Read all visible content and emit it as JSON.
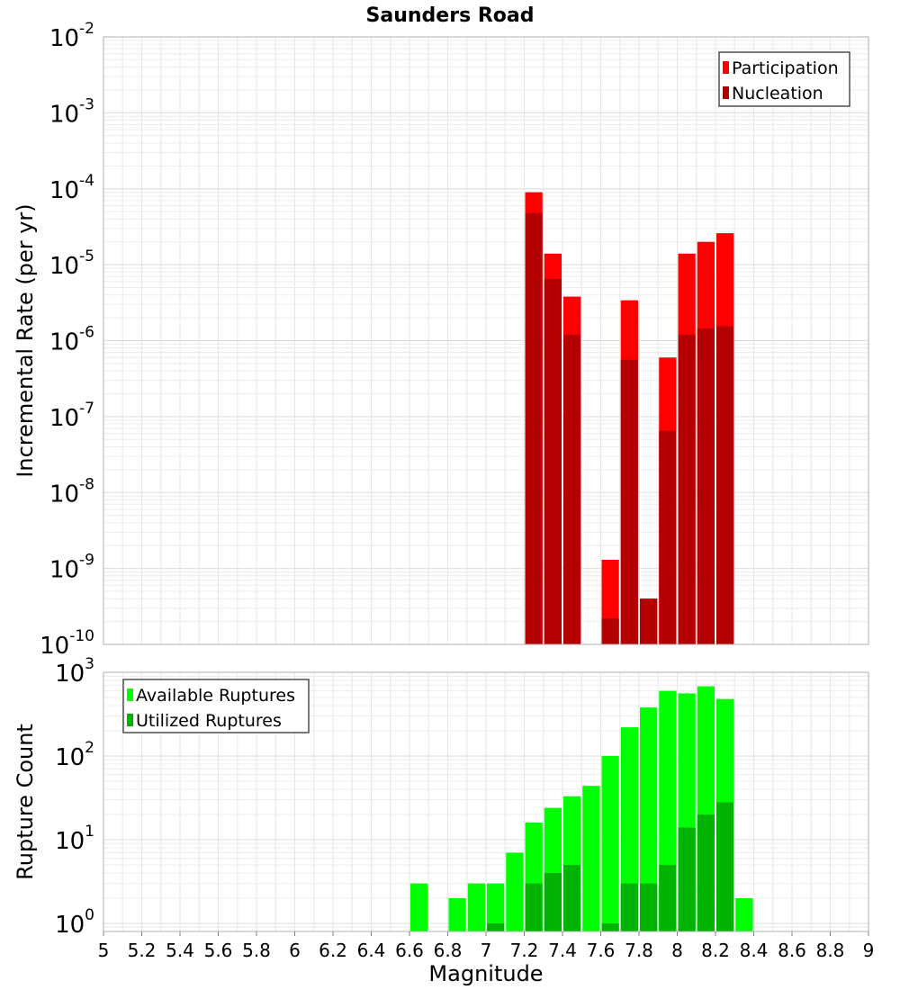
{
  "title": "Saunders Road",
  "chart_data": [
    {
      "type": "bar",
      "panel": "top",
      "ylabel": "Incremental Rate (per yr)",
      "yscale": "log",
      "ylim": [
        1e-10,
        0.01
      ],
      "y_ticks": [
        {
          "base": "10",
          "exp": "-10",
          "v": 1e-10
        },
        {
          "base": "10",
          "exp": "-9",
          "v": 1e-09
        },
        {
          "base": "10",
          "exp": "-8",
          "v": 1e-08
        },
        {
          "base": "10",
          "exp": "-7",
          "v": 1e-07
        },
        {
          "base": "10",
          "exp": "-6",
          "v": 1e-06
        },
        {
          "base": "10",
          "exp": "-5",
          "v": 1e-05
        },
        {
          "base": "10",
          "exp": "-4",
          "v": 0.0001
        },
        {
          "base": "10",
          "exp": "-3",
          "v": 0.001
        },
        {
          "base": "10",
          "exp": "-2",
          "v": 0.01
        }
      ],
      "xlim": [
        5,
        9
      ],
      "grid": true,
      "legend_position": "top-right",
      "series": [
        {
          "name": "Participation",
          "color": "#ff0000",
          "x": [
            7.25,
            7.35,
            7.45,
            7.65,
            7.75,
            7.85,
            7.95,
            8.05,
            8.15,
            8.25
          ],
          "values": [
            9e-05,
            1.4e-05,
            3.8e-06,
            1.3e-09,
            3.4e-06,
            4e-10,
            6e-07,
            1.4e-05,
            2e-05,
            2.6e-05
          ]
        },
        {
          "name": "Nucleation",
          "color": "#b30000",
          "x": [
            7.25,
            7.35,
            7.45,
            7.65,
            7.75,
            7.85,
            7.95,
            8.05,
            8.15,
            8.25
          ],
          "values": [
            4.8e-05,
            6.5e-06,
            1.2e-06,
            2.2e-10,
            5.6e-07,
            4e-10,
            6.5e-08,
            1.2e-06,
            1.45e-06,
            1.55e-06
          ]
        }
      ]
    },
    {
      "type": "bar",
      "panel": "bottom",
      "xlabel": "Magnitude",
      "ylabel": "Rupture Count",
      "yscale": "log",
      "ylim": [
        0.8,
        1000
      ],
      "y_ticks": [
        {
          "base": "10",
          "exp": "0",
          "v": 1
        },
        {
          "base": "10",
          "exp": "1",
          "v": 10
        },
        {
          "base": "10",
          "exp": "2",
          "v": 100
        },
        {
          "base": "10",
          "exp": "3",
          "v": 1000
        }
      ],
      "xlim": [
        5,
        9
      ],
      "x_ticks": [
        "5",
        "5.2",
        "5.4",
        "5.6",
        "5.8",
        "6",
        "6.2",
        "6.4",
        "6.6",
        "6.8",
        "7",
        "7.2",
        "7.4",
        "7.6",
        "7.8",
        "8",
        "8.2",
        "8.4",
        "8.6",
        "8.8",
        "9"
      ],
      "grid": true,
      "legend_position": "top-left",
      "series": [
        {
          "name": "Available Ruptures",
          "color": "#00ff00",
          "x": [
            6.65,
            6.85,
            6.95,
            7.05,
            7.15,
            7.25,
            7.35,
            7.45,
            7.55,
            7.65,
            7.75,
            7.85,
            7.95,
            8.05,
            8.15,
            8.25,
            8.35
          ],
          "values": [
            3,
            2,
            3,
            3,
            7,
            16,
            24,
            33,
            44,
            100,
            220,
            380,
            600,
            560,
            680,
            480,
            2
          ]
        },
        {
          "name": "Utilized Ruptures",
          "color": "#00b300",
          "x": [
            7.05,
            7.25,
            7.35,
            7.45,
            7.65,
            7.75,
            7.85,
            7.95,
            8.05,
            8.15,
            8.25
          ],
          "values": [
            1,
            3,
            4,
            5,
            1,
            3,
            3,
            5,
            14,
            20,
            28
          ]
        }
      ]
    }
  ]
}
